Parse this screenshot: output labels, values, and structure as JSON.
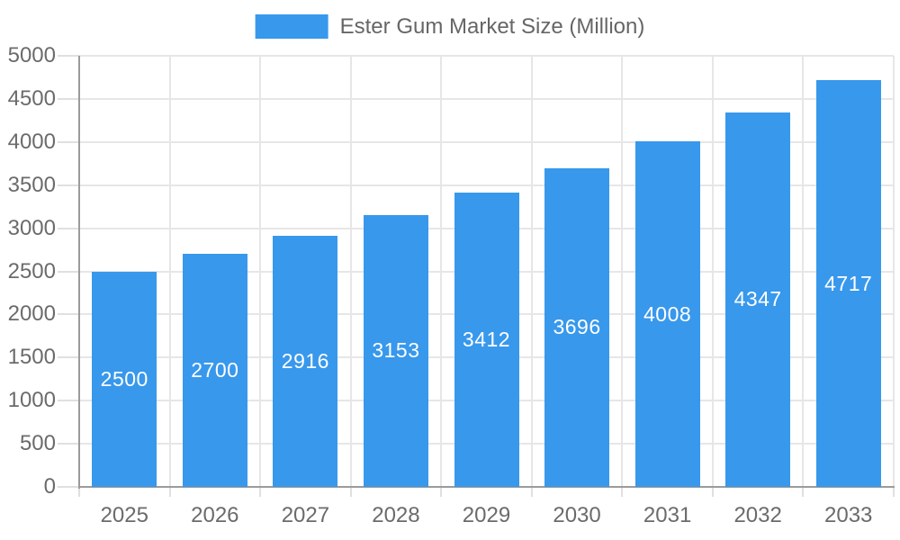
{
  "legend": {
    "label": "Ester Gum Market Size (Million)"
  },
  "chart_data": {
    "type": "bar",
    "title": "",
    "xlabel": "",
    "ylabel": "",
    "series_label": "Ester Gum Market Size (Million)",
    "categories": [
      "2025",
      "2026",
      "2027",
      "2028",
      "2029",
      "2030",
      "2031",
      "2032",
      "2033"
    ],
    "values": [
      2500,
      2700,
      2916,
      3153,
      3412,
      3696,
      4008,
      4347,
      4717
    ],
    "ylim": [
      0,
      5000
    ],
    "ytick_step": 500,
    "ytick_labels": [
      "0",
      "500",
      "1000",
      "1500",
      "2000",
      "2500",
      "3000",
      "3500",
      "4000",
      "4500",
      "5000"
    ],
    "grid": true,
    "legend_position": "top-center",
    "value_labels": "inside-bar-centered",
    "colors": {
      "bar": "#3898EC",
      "value_label_text": "#FFFFFF",
      "axis_text": "#6B6B6B",
      "legend_text": "#666666",
      "gridline": "#E6E6E6",
      "tick": "#E0E0E0",
      "axis_line": "#9B9B9B",
      "background": "#FFFFFF"
    }
  }
}
